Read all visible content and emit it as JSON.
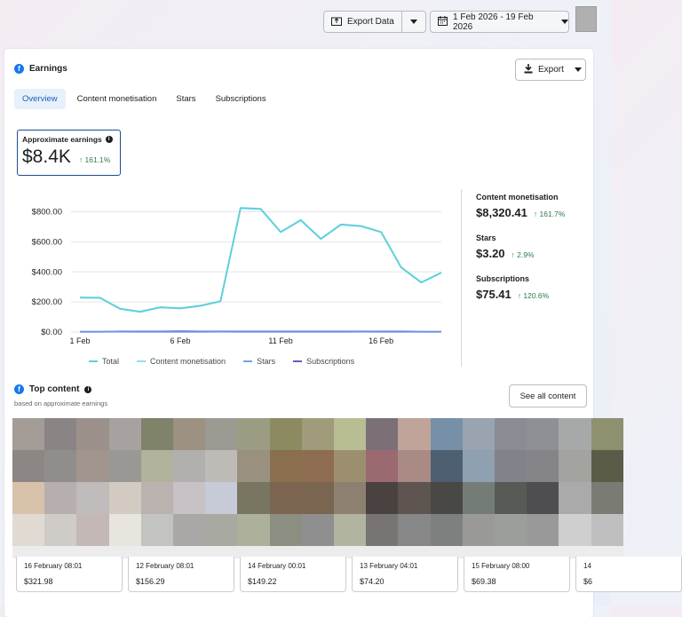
{
  "topbar": {
    "export_data_label": "Export Data",
    "date_range_label": "1 Feb 2026 - 19 Feb 2026"
  },
  "earnings": {
    "title": "Earnings",
    "export_label": "Export",
    "tabs": [
      {
        "label": "Overview",
        "active": true
      },
      {
        "label": "Content monetisation",
        "active": false
      },
      {
        "label": "Stars",
        "active": false
      },
      {
        "label": "Subscriptions",
        "active": false
      }
    ],
    "approx": {
      "label": "Approximate earnings",
      "value": "$8.4K",
      "change": "161.1%"
    },
    "stats": [
      {
        "label": "Content monetisation",
        "value": "$8,320.41",
        "change": "161.7%"
      },
      {
        "label": "Stars",
        "value": "$3.20",
        "change": "2.9%"
      },
      {
        "label": "Subscriptions",
        "value": "$75.41",
        "change": "120.6%"
      }
    ]
  },
  "chart_data": {
    "type": "line",
    "x": [
      "1 Feb",
      "2 Feb",
      "3 Feb",
      "4 Feb",
      "5 Feb",
      "6 Feb",
      "7 Feb",
      "8 Feb",
      "9 Feb",
      "10 Feb",
      "11 Feb",
      "12 Feb",
      "13 Feb",
      "14 Feb",
      "15 Feb",
      "16 Feb",
      "17 Feb",
      "18 Feb",
      "19 Feb"
    ],
    "x_tick_labels": [
      "1 Feb",
      "6 Feb",
      "11 Feb",
      "16 Feb"
    ],
    "y_tick_labels": [
      "$0.00",
      "$200.00",
      "$400.00",
      "$600.00",
      "$800.00"
    ],
    "ylim": [
      0,
      880
    ],
    "grid": true,
    "legend_position": "bottom",
    "series": [
      {
        "name": "Total",
        "color": "#5fd0dc",
        "values": [
          230,
          228,
          155,
          135,
          165,
          158,
          175,
          205,
          825,
          820,
          665,
          745,
          620,
          715,
          705,
          665,
          430,
          330,
          395
        ]
      },
      {
        "name": "Content monetisation",
        "color": "#8fdfe9",
        "values": [
          228,
          226,
          153,
          133,
          163,
          156,
          173,
          203,
          823,
          818,
          663,
          743,
          618,
          713,
          703,
          663,
          428,
          328,
          393
        ]
      },
      {
        "name": "Stars",
        "color": "#6ba6e8",
        "values": [
          0.2,
          0.1,
          0.3,
          0.1,
          0.2,
          0.2,
          0.1,
          0.3,
          0.2,
          0.2,
          0.1,
          0.2,
          0.1,
          0.2,
          0.3,
          0.2,
          0.1,
          0.2,
          0.1
        ]
      },
      {
        "name": "Subscriptions",
        "color": "#6b57c9",
        "values": [
          3,
          3,
          4,
          4,
          5,
          6,
          5,
          4,
          4,
          4,
          4,
          5,
          4,
          4,
          5,
          4,
          4,
          3,
          3
        ]
      }
    ]
  },
  "top_content": {
    "title": "Top content",
    "subtitle": "based on approximate earnings",
    "see_all_label": "See all content",
    "items": [
      {
        "date": "16 February 08:01",
        "value": "$321.98"
      },
      {
        "date": "12 February 08:01",
        "value": "$156.29"
      },
      {
        "date": "14 February 00:01",
        "value": "$149.22"
      },
      {
        "date": "13 February 04:01",
        "value": "$74.20"
      },
      {
        "date": "15 February 08:00",
        "value": "$69.38"
      },
      {
        "date": "14",
        "value": "$6"
      }
    ],
    "mosaic_columns": [
      [
        "#a39c97",
        "#8c8784",
        "#d8c2aa",
        "#e0dad2"
      ],
      [
        "#8a8584",
        "#908e8c",
        "#b7aeae",
        "#cfccc7"
      ],
      [
        "#9b918a",
        "#a1958e",
        "#c1bcbc",
        "#c3b8b6"
      ],
      [
        "#a7a29f",
        "#9a9894",
        "#d3cbc1",
        "#e8e4de"
      ],
      [
        "#7f836a",
        "#b1b19c",
        "#b9b2af",
        "#c3c4c1"
      ],
      [
        "#9d9182",
        "#b1b0af",
        "#c8c2c6",
        "#a9a8a6"
      ],
      [
        "#9d9a94",
        "#bebbb7",
        "#c7cbd8",
        "#a8a9a0"
      ],
      [
        "#9b9c82",
        "#9a9080",
        "#787560",
        "#adb09a"
      ],
      [
        "#8b8a60",
        "#896f4e",
        "#7b6550",
        "#8d8e82"
      ],
      [
        "#a09b7a",
        "#8e6c52",
        "#7a6550",
        "#8f8f90"
      ],
      [
        "#b9bd94",
        "#9c8f70",
        "#8e8070",
        "#b0b4a0"
      ],
      [
        "#7c7078",
        "#9a6a70",
        "#4a4240",
        "#787474"
      ],
      [
        "#c0a49a",
        "#a98a84",
        "#5e5450",
        "#878787"
      ],
      [
        "#7790a8",
        "#4e5f72",
        "#4a4846",
        "#7e8080"
      ],
      [
        "#9aa4b0",
        "#8fa0b0",
        "#747c78",
        "#999a98"
      ],
      [
        "#8a8c94",
        "#82828a",
        "#585a56",
        "#9c9e9c"
      ],
      [
        "#8e9096",
        "#858589",
        "#4e4e50",
        "#999999"
      ],
      [
        "#a7a9a8",
        "#a3a3a0",
        "#aaaaab",
        "#cfcfcf"
      ],
      [
        "#8e9070",
        "#5a5c48",
        "#7a7c74",
        "#bfbfbf"
      ]
    ]
  }
}
